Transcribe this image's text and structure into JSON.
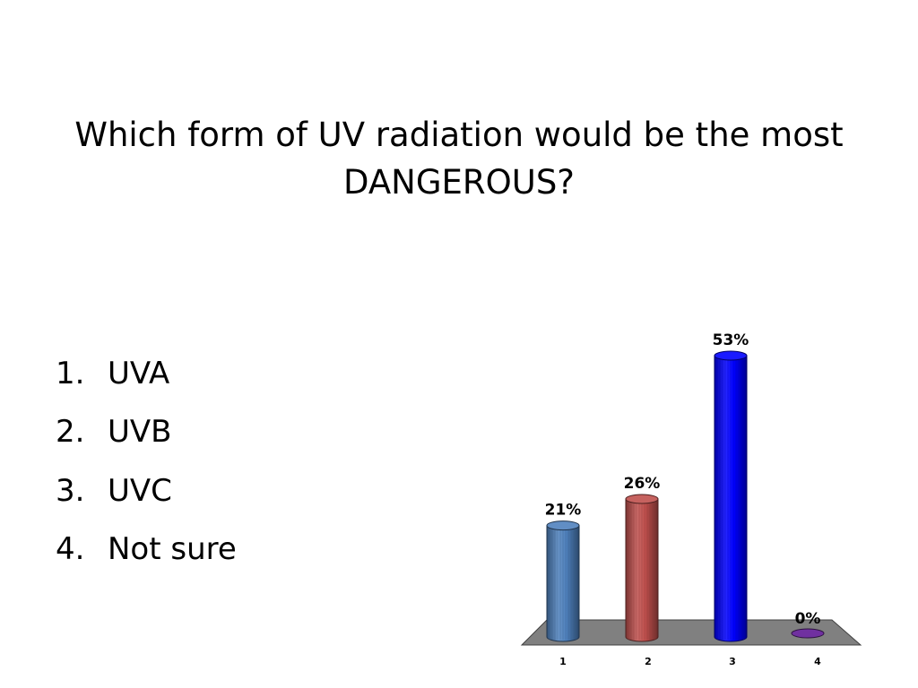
{
  "slide": {
    "title_line1": "Which form of UV radiation would be the most",
    "title_line2": "DANGEROUS?"
  },
  "options": [
    {
      "num": "1.",
      "label": "UVA"
    },
    {
      "num": "2.",
      "label": "UVB"
    },
    {
      "num": "3.",
      "label": "UVC"
    },
    {
      "num": "4.",
      "label": "Not sure"
    }
  ],
  "chart_data": {
    "type": "bar",
    "style": "3d-cylinder",
    "categories": [
      "1",
      "2",
      "3",
      "4"
    ],
    "values": [
      21,
      26,
      53,
      0
    ],
    "data_labels": [
      "21%",
      "26%",
      "53%",
      "0%"
    ],
    "ylim": [
      0,
      53
    ],
    "grid": false,
    "colors": [
      "#4f81bd",
      "#c0504d",
      "#0000ff",
      "#7030a0"
    ],
    "floor_color": "#808080"
  }
}
